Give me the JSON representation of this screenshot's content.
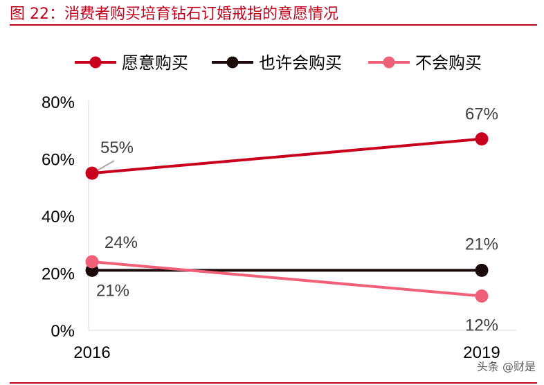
{
  "header": {
    "figure_title": "图 22：消费者购买培育钻石订婚戒指的意愿情况"
  },
  "watermark": "头条 @财是",
  "chart_data": {
    "type": "line",
    "categories": [
      "2016",
      "2019"
    ],
    "ylim": [
      0,
      80
    ],
    "yticks": [
      0,
      20,
      40,
      60,
      80
    ],
    "ytick_labels": [
      "0%",
      "20%",
      "40%",
      "60%",
      "80%"
    ],
    "grid": false,
    "legend_position": "top",
    "series": [
      {
        "name": "愿意购买",
        "values": [
          55,
          67
        ],
        "labels": [
          "55%",
          "67%"
        ],
        "color": "#c8001e"
      },
      {
        "name": "也许会购买",
        "values": [
          21,
          21
        ],
        "labels": [
          "21%",
          "21%"
        ],
        "color": "#1c0a0a"
      },
      {
        "name": "不会购买",
        "values": [
          24,
          12
        ],
        "labels": [
          "24%",
          "12%"
        ],
        "color": "#f06078"
      }
    ]
  }
}
